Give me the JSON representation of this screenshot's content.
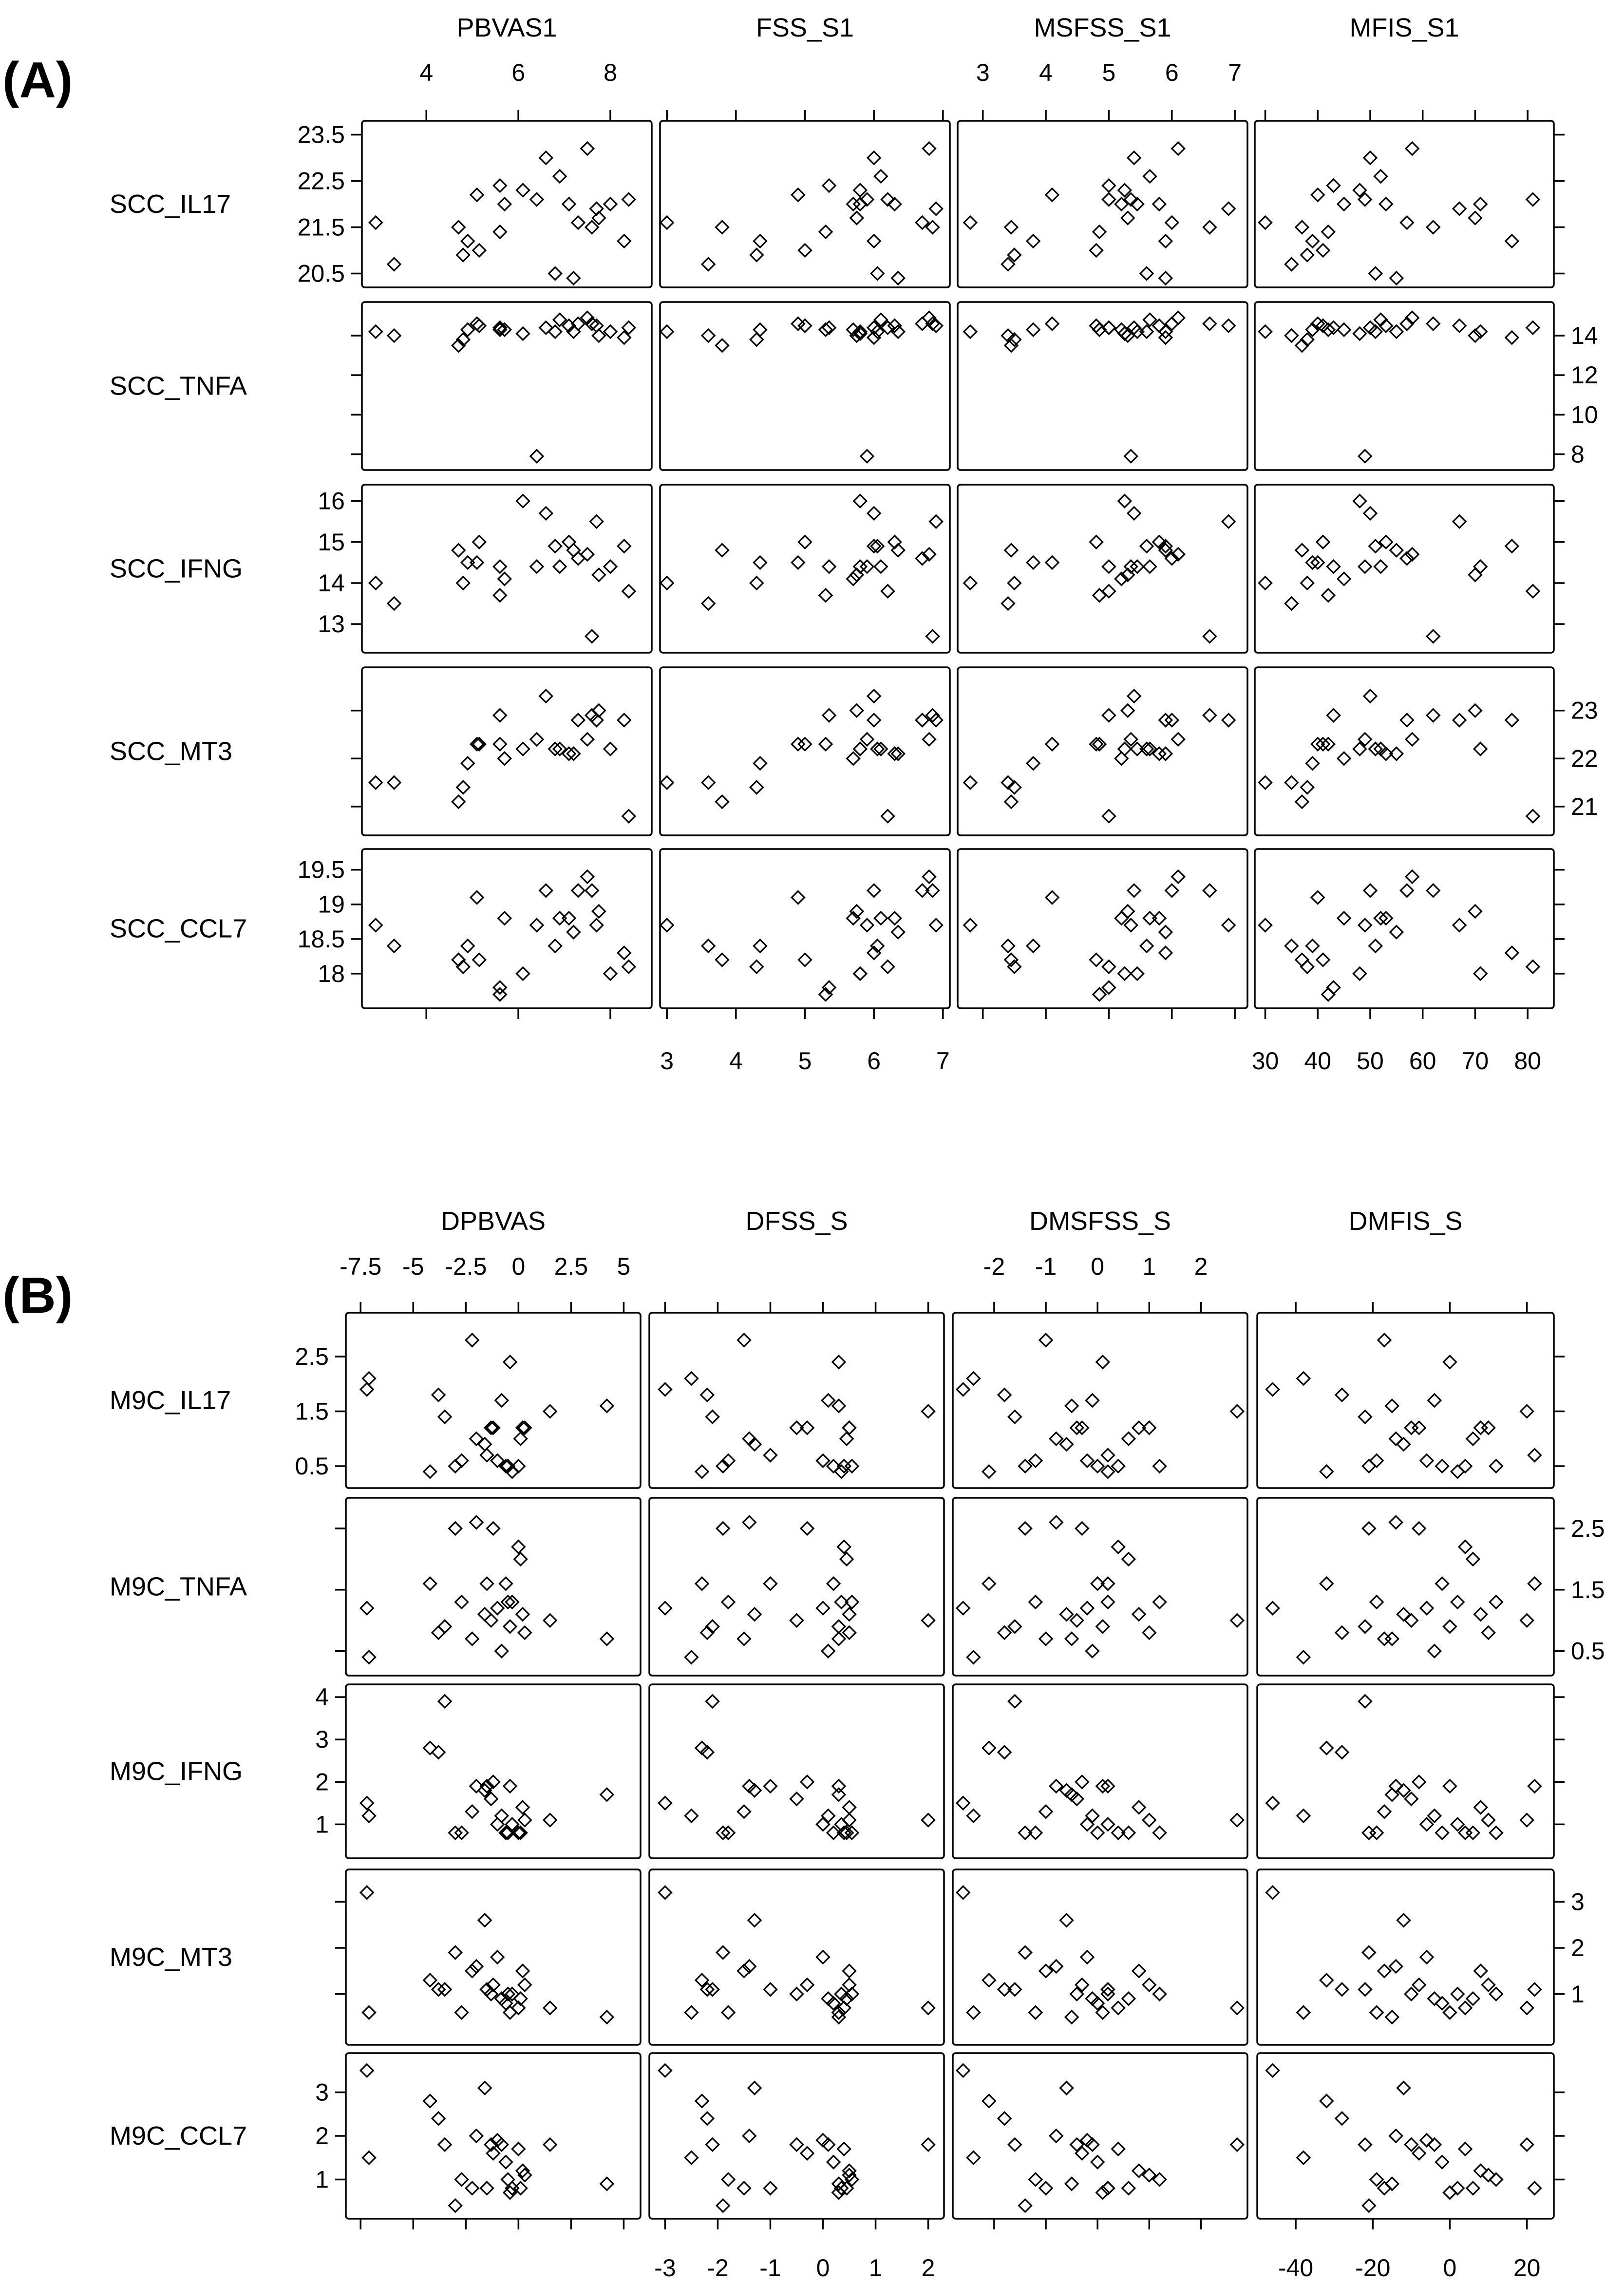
{
  "chart_data": [
    {
      "type": "scatter",
      "panel_label": "(A)",
      "x_vars": [
        {
          "name": "PBVAS1",
          "range": [
            2.6,
            8.9
          ],
          "ticks": [
            {
              "v": 4,
              "label": "4"
            },
            {
              "v": 6,
              "label": "6"
            },
            {
              "v": 8,
              "label": "8"
            }
          ],
          "tick_side": "top"
        },
        {
          "name": "FSS_S1",
          "range": [
            2.9,
            7.1
          ],
          "ticks": [
            {
              "v": 3,
              "label": "3"
            },
            {
              "v": 4,
              "label": "4"
            },
            {
              "v": 5,
              "label": "5"
            },
            {
              "v": 6,
              "label": "6"
            },
            {
              "v": 7,
              "label": "7"
            }
          ],
          "tick_side": "bottom"
        },
        {
          "name": "MSFSS_S1",
          "range": [
            2.6,
            7.2
          ],
          "ticks": [
            {
              "v": 3,
              "label": "3"
            },
            {
              "v": 4,
              "label": "4"
            },
            {
              "v": 5,
              "label": "5"
            },
            {
              "v": 6,
              "label": "6"
            },
            {
              "v": 7,
              "label": "7"
            }
          ],
          "tick_side": "top"
        },
        {
          "name": "MFIS_S1",
          "range": [
            28,
            85
          ],
          "ticks": [
            {
              "v": 30,
              "label": "30"
            },
            {
              "v": 40,
              "label": "40"
            },
            {
              "v": 50,
              "label": "50"
            },
            {
              "v": 60,
              "label": "60"
            },
            {
              "v": 70,
              "label": "70"
            },
            {
              "v": 80,
              "label": "80"
            }
          ],
          "tick_side": "bottom"
        }
      ],
      "y_vars": [
        {
          "name": "SCC_IL17",
          "range": [
            20.2,
            23.8
          ],
          "ticks": [
            {
              "v": 20.5,
              "label": "20.5"
            },
            {
              "v": 21.5,
              "label": "21.5"
            },
            {
              "v": 22.5,
              "label": "22.5"
            },
            {
              "v": 23.5,
              "label": "23.5"
            }
          ],
          "tick_side": "left"
        },
        {
          "name": "SCC_TNFA",
          "range": [
            7.2,
            15.7
          ],
          "ticks": [
            {
              "v": 8,
              "label": "8"
            },
            {
              "v": 10,
              "label": "10"
            },
            {
              "v": 12,
              "label": "12"
            },
            {
              "v": 14,
              "label": "14"
            }
          ],
          "tick_side": "right"
        },
        {
          "name": "SCC_IFNG",
          "range": [
            12.3,
            16.4
          ],
          "ticks": [
            {
              "v": 13,
              "label": "13"
            },
            {
              "v": 14,
              "label": "14"
            },
            {
              "v": 15,
              "label": "15"
            },
            {
              "v": 16,
              "label": "16"
            }
          ],
          "tick_side": "left"
        },
        {
          "name": "SCC_MT3",
          "range": [
            20.4,
            23.9
          ],
          "ticks": [
            {
              "v": 21,
              "label": "21"
            },
            {
              "v": 22,
              "label": "22"
            },
            {
              "v": 23,
              "label": "23"
            }
          ],
          "tick_side": "right"
        },
        {
          "name": "SCC_CCL7",
          "range": [
            17.5,
            19.8
          ],
          "ticks": [
            {
              "v": 18,
              "label": "18"
            },
            {
              "v": 18.5,
              "label": "18.5"
            },
            {
              "v": 19,
              "label": "19"
            },
            {
              "v": 19.5,
              "label": "19.5"
            }
          ],
          "tick_side": "left"
        }
      ],
      "x_values": [
        [
          2.9,
          3.3,
          4.7,
          4.8,
          4.9,
          5.1,
          5.15,
          5.6,
          5.6,
          5.7,
          6.1,
          6.4,
          6.6,
          6.8,
          6.9,
          7.1,
          7.2,
          7.3,
          7.5,
          7.6,
          7.7,
          7.75,
          8.0,
          8.3,
          8.4
        ],
        [
          3.0,
          3.6,
          3.8,
          4.3,
          4.35,
          4.9,
          5.0,
          5.3,
          5.35,
          5.7,
          5.8,
          5.9,
          6.0,
          6.05,
          6.1,
          6.3,
          6.35,
          6.7,
          6.8,
          6.85,
          6.9,
          5.75,
          5.8,
          6.0,
          6.2
        ],
        [
          2.8,
          3.4,
          3.45,
          3.5,
          3.8,
          4.1,
          4.8,
          4.85,
          5.0,
          5.2,
          5.25,
          5.35,
          5.4,
          5.6,
          5.65,
          5.8,
          5.9,
          6.0,
          6.1,
          6.6,
          6.9,
          5.3,
          5.45,
          5.9,
          5.0
        ],
        [
          30,
          35,
          37,
          38,
          39,
          40,
          41,
          42,
          43,
          45,
          48,
          49,
          50,
          51,
          52,
          53,
          55,
          57,
          58,
          62,
          67,
          70,
          71,
          77,
          81
        ]
      ],
      "y_values": [
        [
          21.6,
          20.7,
          21.5,
          20.9,
          21.2,
          22.2,
          21.0,
          21.4,
          22.4,
          22.0,
          22.3,
          22.1,
          23.0,
          20.5,
          22.6,
          22.0,
          20.4,
          21.6,
          23.2,
          21.5,
          21.9,
          21.7,
          22.0,
          21.2,
          22.1
        ],
        [
          14.2,
          14.0,
          13.5,
          13.8,
          14.3,
          14.6,
          14.5,
          14.3,
          14.4,
          14.3,
          14.1,
          7.9,
          14.4,
          14.2,
          14.8,
          14.5,
          14.2,
          14.6,
          14.9,
          14.6,
          14.5,
          14.0,
          14.2,
          13.9,
          14.4
        ],
        [
          14.0,
          13.5,
          14.8,
          14.0,
          14.5,
          14.5,
          15.0,
          13.7,
          14.4,
          14.1,
          16.0,
          14.4,
          15.7,
          14.9,
          14.4,
          15.0,
          14.8,
          14.6,
          14.7,
          12.7,
          15.5,
          14.2,
          14.4,
          14.9,
          13.8
        ],
        [
          21.5,
          21.5,
          21.1,
          21.4,
          21.9,
          22.3,
          22.3,
          22.3,
          22.9,
          22.0,
          22.2,
          22.4,
          23.3,
          22.2,
          22.2,
          22.1,
          22.1,
          22.8,
          22.4,
          22.9,
          22.8,
          23.0,
          22.2,
          22.8,
          20.8
        ],
        [
          18.7,
          18.4,
          18.2,
          18.1,
          18.4,
          19.1,
          18.2,
          17.7,
          17.8,
          18.8,
          18.0,
          18.7,
          19.2,
          18.4,
          18.8,
          18.8,
          18.6,
          19.2,
          19.4,
          19.2,
          18.7,
          18.9,
          18.0,
          18.3,
          18.1
        ]
      ]
    },
    {
      "type": "scatter",
      "panel_label": "(B)",
      "x_vars": [
        {
          "name": "DPBVAS",
          "range": [
            -8.2,
            5.8
          ],
          "ticks": [
            {
              "v": -7.5,
              "label": "-7.5"
            },
            {
              "v": -5,
              "label": "-5"
            },
            {
              "v": -2.5,
              "label": "-2.5"
            },
            {
              "v": 0,
              "label": "0"
            },
            {
              "v": 2.5,
              "label": "2.5"
            },
            {
              "v": 5,
              "label": "5"
            }
          ],
          "tick_side": "top"
        },
        {
          "name": "DFSS_S",
          "range": [
            -3.3,
            2.3
          ],
          "ticks": [
            {
              "v": -3,
              "label": "-3"
            },
            {
              "v": -2,
              "label": "-2"
            },
            {
              "v": -1,
              "label": "-1"
            },
            {
              "v": 0,
              "label": "0"
            },
            {
              "v": 1,
              "label": "1"
            },
            {
              "v": 2,
              "label": "2"
            }
          ],
          "tick_side": "bottom"
        },
        {
          "name": "DMSFSS_S",
          "range": [
            -2.8,
            2.9
          ],
          "ticks": [
            {
              "v": -2,
              "label": "-2"
            },
            {
              "v": -1,
              "label": "-1"
            },
            {
              "v": 0,
              "label": "0"
            },
            {
              "v": 1,
              "label": "1"
            },
            {
              "v": 2,
              "label": "2"
            }
          ],
          "tick_side": "top"
        },
        {
          "name": "DMFIS_S",
          "range": [
            -50,
            27
          ],
          "ticks": [
            {
              "v": -40,
              "label": "-40"
            },
            {
              "v": -20,
              "label": "-20"
            },
            {
              "v": 0,
              "label": "0"
            },
            {
              "v": 20,
              "label": "20"
            }
          ],
          "tick_side": "bottom"
        }
      ],
      "y_vars": [
        {
          "name": "M9C_IL17",
          "range": [
            0.1,
            3.3
          ],
          "ticks": [
            {
              "v": 0.5,
              "label": "0.5"
            },
            {
              "v": 1.5,
              "label": "1.5"
            },
            {
              "v": 2.5,
              "label": "2.5"
            }
          ],
          "tick_side": "left"
        },
        {
          "name": "M9C_TNFA",
          "range": [
            0.1,
            3.0
          ],
          "ticks": [
            {
              "v": 0.5,
              "label": "0.5"
            },
            {
              "v": 1.5,
              "label": "1.5"
            },
            {
              "v": 2.5,
              "label": "2.5"
            }
          ],
          "tick_side": "right"
        },
        {
          "name": "M9C_IFNG",
          "range": [
            0.2,
            4.3
          ],
          "ticks": [
            {
              "v": 1,
              "label": "1"
            },
            {
              "v": 2,
              "label": "2"
            },
            {
              "v": 3,
              "label": "3"
            },
            {
              "v": 4,
              "label": "4"
            }
          ],
          "tick_side": "left"
        },
        {
          "name": "M9C_MT3",
          "range": [
            -0.1,
            3.7
          ],
          "ticks": [
            {
              "v": 1,
              "label": "1"
            },
            {
              "v": 2,
              "label": "2"
            },
            {
              "v": 3,
              "label": "3"
            }
          ],
          "tick_side": "right"
        },
        {
          "name": "M9C_CCL7",
          "range": [
            0.1,
            3.9
          ],
          "ticks": [
            {
              "v": 1,
              "label": "1"
            },
            {
              "v": 2,
              "label": "2"
            },
            {
              "v": 3,
              "label": "3"
            }
          ],
          "tick_side": "left"
        }
      ],
      "x_values": [
        [
          -7.2,
          -7.1,
          -4.2,
          -3.8,
          -3.5,
          -3.0,
          -2.7,
          -2.2,
          -2.0,
          -1.6,
          -1.3,
          -1.2,
          -1.0,
          -0.8,
          -0.6,
          -0.4,
          -0.3,
          0.0,
          0.1,
          0.2,
          0.3,
          -0.5,
          1.5,
          -1.5,
          4.2
        ],
        [
          -3.0,
          -2.5,
          -2.3,
          -2.2,
          -2.1,
          -1.9,
          -1.8,
          -1.5,
          -1.4,
          -1.3,
          -0.5,
          -0.3,
          0.0,
          0.1,
          0.2,
          0.3,
          0.35,
          0.4,
          0.45,
          0.5,
          0.5,
          0.55,
          2.0,
          -1.0,
          0.3
        ],
        [
          -2.6,
          -2.4,
          -2.1,
          -1.8,
          -1.6,
          -1.4,
          -1.2,
          -1.0,
          -0.8,
          -0.6,
          -0.4,
          -0.3,
          -0.2,
          -0.1,
          0.0,
          0.1,
          0.2,
          0.4,
          0.6,
          0.8,
          1.0,
          1.2,
          2.7,
          0.2,
          -0.5
        ],
        [
          -46,
          -38,
          -32,
          -28,
          -22,
          -21,
          -19,
          -17,
          -14,
          -12,
          -10,
          -8,
          -6,
          -4,
          -2,
          0,
          2,
          4,
          6,
          8,
          10,
          12,
          20,
          22,
          -15
        ]
      ],
      "y_values": [
        [
          1.9,
          2.1,
          0.4,
          1.8,
          1.4,
          0.5,
          0.6,
          2.8,
          1.0,
          0.9,
          1.2,
          1.2,
          0.6,
          1.7,
          0.5,
          2.4,
          0.4,
          0.5,
          1.0,
          1.2,
          1.2,
          0.5,
          1.5,
          0.7,
          1.6
        ],
        [
          1.2,
          0.4,
          1.6,
          0.8,
          0.9,
          2.5,
          1.3,
          0.7,
          2.6,
          1.1,
          1.0,
          2.5,
          1.2,
          0.5,
          1.6,
          0.9,
          1.3,
          2.2,
          2.0,
          1.1,
          0.8,
          1.3,
          1.0,
          1.6,
          0.7
        ],
        [
          1.5,
          1.2,
          2.8,
          2.7,
          3.9,
          0.8,
          0.8,
          1.3,
          1.9,
          1.8,
          1.6,
          2.0,
          1.0,
          1.2,
          0.8,
          1.9,
          1.0,
          0.8,
          0.8,
          1.4,
          1.1,
          0.8,
          1.1,
          1.9,
          1.7
        ],
        [
          3.2,
          0.6,
          1.3,
          1.1,
          1.1,
          1.9,
          0.6,
          1.5,
          1.6,
          2.6,
          1.0,
          1.2,
          1.8,
          0.9,
          0.8,
          0.6,
          1.0,
          0.7,
          0.9,
          1.5,
          1.2,
          1.0,
          0.7,
          1.1,
          0.5
        ],
        [
          3.5,
          1.5,
          2.8,
          2.4,
          1.8,
          0.4,
          1.0,
          0.8,
          2.0,
          3.1,
          1.8,
          1.6,
          1.9,
          1.8,
          1.4,
          0.7,
          0.8,
          1.7,
          0.8,
          1.2,
          1.1,
          1.0,
          1.8,
          0.8,
          0.9
        ]
      ]
    }
  ]
}
